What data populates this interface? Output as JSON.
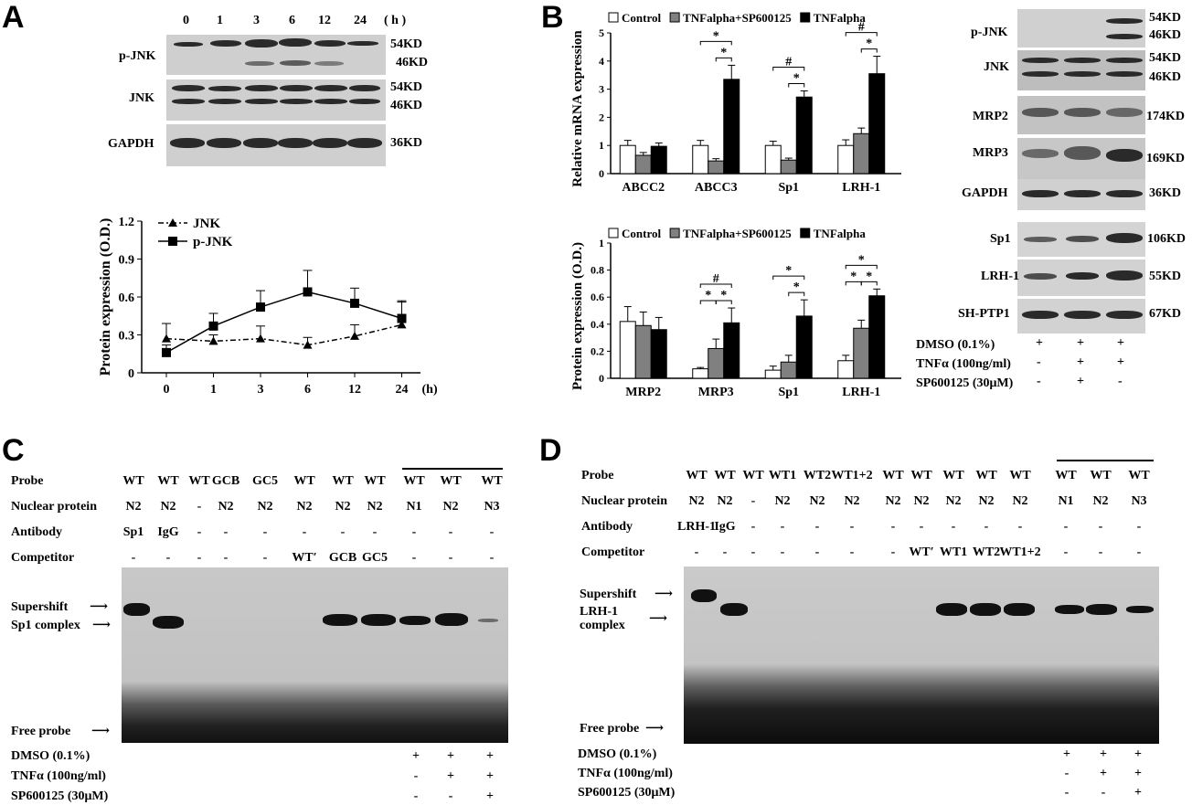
{
  "panels": {
    "a": "A",
    "b": "B",
    "c": "C",
    "d": "D"
  },
  "panelA": {
    "timepoints": [
      "0",
      "1",
      "3",
      "6",
      "12",
      "24"
    ],
    "time_unit": "( h )",
    "blots": [
      {
        "name": "p-JNK",
        "sizes": [
          "54KD",
          "46KD"
        ]
      },
      {
        "name": "JNK",
        "sizes": [
          "54KD",
          "46KD"
        ]
      },
      {
        "name": "GAPDH",
        "sizes": [
          "36KD"
        ]
      }
    ]
  },
  "panelB": {
    "blot_rows": [
      {
        "name": "p-JNK",
        "sizes": [
          "54KD",
          "46KD"
        ]
      },
      {
        "name": "JNK",
        "sizes": [
          "54KD",
          "46KD"
        ]
      },
      {
        "name": "MRP2",
        "sizes": [
          "174KD"
        ]
      },
      {
        "name": "MRP3",
        "sizes": [
          "169KD"
        ]
      },
      {
        "name": "GAPDH",
        "sizes": [
          "36KD"
        ]
      },
      {
        "name": "Sp1",
        "sizes": [
          "106KD"
        ]
      },
      {
        "name": "LRH-1",
        "sizes": [
          "55KD"
        ]
      },
      {
        "name": "SH-PTP1",
        "sizes": [
          "67KD"
        ]
      }
    ],
    "treatments": [
      {
        "label": "DMSO (0.1%)",
        "marks": [
          "+",
          "+",
          "+"
        ]
      },
      {
        "label": "TNFα (100ng/ml)",
        "marks": [
          "-",
          "+",
          "+"
        ]
      },
      {
        "label": "SP600125 (30μM)",
        "marks": [
          "-",
          "+",
          "-"
        ]
      }
    ]
  },
  "chart_data": [
    {
      "type": "line",
      "x": [
        "0",
        "1",
        "3",
        "6",
        "12",
        "24"
      ],
      "xunit": "(h)",
      "ylabel": "Protein expression (O.D.)",
      "ylim": [
        0,
        1.2
      ],
      "yticks": [
        "0",
        "0.3",
        "0.6",
        "0.9",
        "1.2"
      ],
      "series": [
        {
          "name": "JNK",
          "marker": "triangle",
          "dash": true,
          "values": [
            0.27,
            0.25,
            0.27,
            0.22,
            0.29,
            0.38
          ],
          "errors": [
            0.12,
            0.05,
            0.1,
            0.06,
            0.09,
            0.19
          ]
        },
        {
          "name": "p-JNK",
          "marker": "square",
          "dash": false,
          "values": [
            0.16,
            0.37,
            0.52,
            0.64,
            0.55,
            0.43
          ],
          "errors": [
            0.06,
            0.1,
            0.13,
            0.17,
            0.12,
            0.13
          ]
        }
      ]
    },
    {
      "type": "bar",
      "ylabel": "Relative mRNA expression",
      "ylim": [
        0,
        5
      ],
      "yticks": [
        "0",
        "1",
        "2",
        "3",
        "4",
        "5"
      ],
      "categories": [
        "ABCC2",
        "ABCC3",
        "Sp1",
        "LRH-1"
      ],
      "series": [
        {
          "name": "Control",
          "color": "#ffffff",
          "values": [
            1.0,
            1.0,
            1.0,
            1.0
          ],
          "errors": [
            0.18,
            0.18,
            0.15,
            0.2
          ]
        },
        {
          "name": "TNFalpha+SP600125",
          "color": "#808080",
          "values": [
            0.65,
            0.45,
            0.48,
            1.42
          ],
          "errors": [
            0.1,
            0.08,
            0.07,
            0.2
          ]
        },
        {
          "name": "TNFalpha",
          "color": "#000000",
          "values": [
            0.97,
            3.35,
            2.72,
            3.55
          ],
          "errors": [
            0.12,
            0.5,
            0.22,
            0.62
          ]
        }
      ],
      "significance": [
        {
          "category": "ABCC3",
          "marks": [
            "*",
            "*"
          ]
        },
        {
          "category": "Sp1",
          "marks": [
            "#",
            "*"
          ]
        },
        {
          "category": "LRH-1",
          "marks": [
            "#",
            "*"
          ]
        }
      ]
    },
    {
      "type": "bar",
      "ylabel": "Protein expression (O.D.)",
      "ylim": [
        0,
        1
      ],
      "yticks": [
        "0",
        "0.2",
        "0.4",
        "0.6",
        "0.8",
        "1"
      ],
      "categories": [
        "MRP2",
        "MRP3",
        "Sp1",
        "LRH-1"
      ],
      "series": [
        {
          "name": "Control",
          "color": "#ffffff",
          "values": [
            0.42,
            0.07,
            0.06,
            0.13
          ],
          "errors": [
            0.11,
            0.01,
            0.03,
            0.04
          ]
        },
        {
          "name": "TNFalpha+SP600125",
          "color": "#808080",
          "values": [
            0.39,
            0.22,
            0.12,
            0.37
          ],
          "errors": [
            0.1,
            0.07,
            0.05,
            0.06
          ]
        },
        {
          "name": "TNFalpha",
          "color": "#000000",
          "values": [
            0.36,
            0.41,
            0.46,
            0.61
          ],
          "errors": [
            0.09,
            0.11,
            0.12,
            0.05
          ]
        }
      ],
      "significance": [
        {
          "category": "MRP3",
          "marks": [
            "*",
            "*",
            "#"
          ]
        },
        {
          "category": "Sp1",
          "marks": [
            "*",
            "*"
          ]
        },
        {
          "category": "LRH-1",
          "marks": [
            "*",
            "*",
            "*"
          ]
        }
      ]
    }
  ],
  "panelC": {
    "rows": [
      {
        "label": "Probe",
        "cells": [
          "WT",
          "WT",
          "WT",
          "GCB",
          "GC5",
          "WT",
          "WT",
          "WT",
          "WT",
          "WT",
          "WT"
        ]
      },
      {
        "label": "Nuclear protein",
        "cells": [
          "N2",
          "N2",
          "-",
          "N2",
          "N2",
          "N2",
          "N2",
          "N2",
          "N1",
          "N2",
          "N3"
        ]
      },
      {
        "label": "Antibody",
        "cells": [
          "Sp1",
          "IgG",
          "-",
          "-",
          "-",
          "-",
          "-",
          "-",
          "-",
          "-",
          "-"
        ]
      },
      {
        "label": "Competitor",
        "cells": [
          "-",
          "-",
          "-",
          "-",
          "-",
          "WT′",
          "GCB",
          "GC5",
          "-",
          "-",
          "-"
        ]
      }
    ],
    "markers": [
      "Supershift",
      "Sp1 complex",
      "Free probe"
    ],
    "treatments": [
      {
        "label": "DMSO (0.1%)",
        "marks": [
          "+",
          "+",
          "+"
        ]
      },
      {
        "label": "TNFα (100ng/ml)",
        "marks": [
          "-",
          "+",
          "+"
        ]
      },
      {
        "label": "SP600125 (30μM)",
        "marks": [
          "-",
          "-",
          "+"
        ]
      }
    ]
  },
  "panelD": {
    "rows": [
      {
        "label": "Probe",
        "cells": [
          "WT",
          "WT",
          "WT",
          "WT1",
          "WT2",
          "WT1+2",
          "WT",
          "WT",
          "WT",
          "WT",
          "WT",
          "WT",
          "WT",
          "WT"
        ]
      },
      {
        "label": "Nuclear protein",
        "cells": [
          "N2",
          "N2",
          "-",
          "N2",
          "N2",
          "N2",
          "N2",
          "N2",
          "N2",
          "N2",
          "N2",
          "N1",
          "N2",
          "N3"
        ]
      },
      {
        "label": "Antibody",
        "cells": [
          "LRH-1",
          "IgG",
          "-",
          "-",
          "-",
          "-",
          "-",
          "-",
          "-",
          "-",
          "-",
          "-",
          "-",
          "-"
        ]
      },
      {
        "label": "Competitor",
        "cells": [
          "-",
          "-",
          "-",
          "-",
          "-",
          "-",
          "-",
          "WT′",
          "WT1",
          "WT2",
          "WT1+2",
          "-",
          "-",
          "-"
        ]
      }
    ],
    "markers": [
      "Supershift",
      "LRH-1",
      "complex",
      "Free probe"
    ],
    "treatments": [
      {
        "label": "DMSO (0.1%)",
        "marks": [
          "+",
          "+",
          "+"
        ]
      },
      {
        "label": "TNFα (100ng/ml)",
        "marks": [
          "-",
          "+",
          "+"
        ]
      },
      {
        "label": "SP600125 (30μM)",
        "marks": [
          "-",
          "-",
          "+"
        ]
      }
    ]
  }
}
